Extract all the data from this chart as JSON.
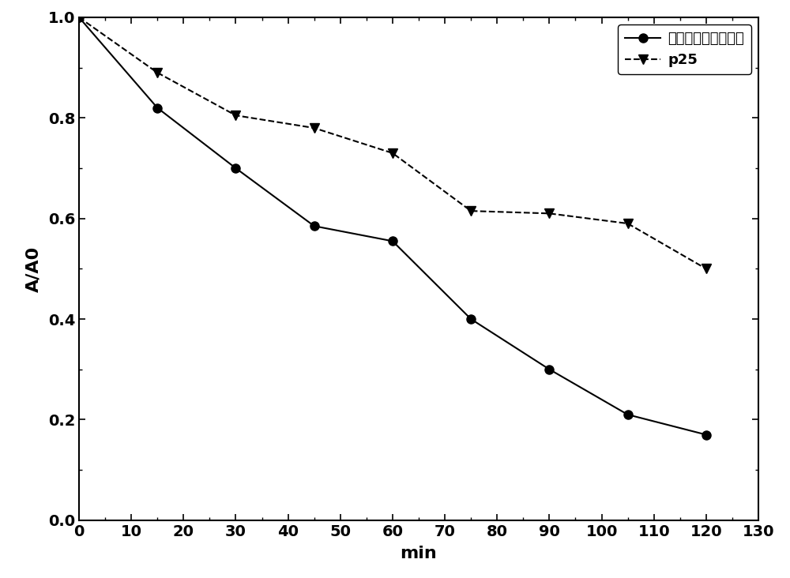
{
  "series1_label": "二氧化鑂掃杂血红素",
  "series2_label": "p25",
  "series1_x": [
    0,
    15,
    30,
    45,
    60,
    75,
    90,
    105,
    120
  ],
  "series1_y": [
    1.0,
    0.82,
    0.7,
    0.585,
    0.555,
    0.4,
    0.3,
    0.21,
    0.17
  ],
  "series2_x": [
    0,
    15,
    30,
    45,
    60,
    75,
    90,
    105,
    120
  ],
  "series2_y": [
    1.0,
    0.89,
    0.805,
    0.78,
    0.73,
    0.615,
    0.61,
    0.59,
    0.5
  ],
  "xlabel": "min",
  "ylabel": "A/A0",
  "xlim": [
    0,
    130
  ],
  "ylim": [
    0.0,
    1.0
  ],
  "xticks": [
    0,
    10,
    20,
    30,
    40,
    50,
    60,
    70,
    80,
    90,
    100,
    110,
    120,
    130
  ],
  "yticks": [
    0.0,
    0.2,
    0.4,
    0.6,
    0.8,
    1.0
  ],
  "line_color": "#000000",
  "marker_size1": 8,
  "marker_size2": 8,
  "linewidth": 1.5,
  "tick_labelsize": 14,
  "axis_labelsize": 16,
  "legend_fontsize": 13
}
